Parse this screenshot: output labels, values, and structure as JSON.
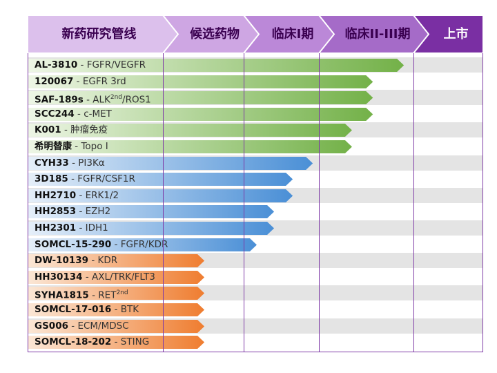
{
  "header": {
    "stages": [
      {
        "label": "新药研究管线",
        "fill": "#dcc0ec",
        "text_color": "#3a0050"
      },
      {
        "label": "候选药物",
        "fill": "#cea6e3",
        "text_color": "#3a0050"
      },
      {
        "label": "临床I期",
        "fill": "#bb88d8",
        "text_color": "#3a0050"
      },
      {
        "label": "临床II-III期",
        "fill": "#a56bc8",
        "text_color": "#3a0050"
      },
      {
        "label": "上市",
        "fill": "#7a2fa3",
        "text_color": "#ffffff"
      }
    ]
  },
  "colors": {
    "green": "#73b148",
    "blue": "#4a8fd6",
    "orange": "#ef7d30",
    "row_odd": "#e4e4e4",
    "row_even": "#ffffff",
    "grid": "#7e3aa6"
  },
  "rows": [
    {
      "code": "AL-3810",
      "target": "FGFR/VEGFR",
      "progress": 0.826,
      "color": "green"
    },
    {
      "code": "120067",
      "target": "EGFR 3rd",
      "progress": 0.758,
      "color": "green"
    },
    {
      "code": "SAF-189s",
      "target": "ALK",
      "sup": "2nd",
      "target_after": "/ROS1",
      "progress": 0.758,
      "color": "green"
    },
    {
      "code": "SCC244",
      "target": "c-MET",
      "progress": 0.758,
      "color": "green"
    },
    {
      "code": "K001",
      "target": "肿瘤免疫",
      "progress": 0.712,
      "color": "green"
    },
    {
      "code": "希明替康",
      "target": "Topo I",
      "progress": 0.712,
      "color": "green"
    },
    {
      "code": "CYH33",
      "target": "PI3Kα",
      "progress": 0.626,
      "color": "blue"
    },
    {
      "code": "3D185",
      "target": "FGFR/CSF1R",
      "progress": 0.582,
      "color": "blue"
    },
    {
      "code": "HH2710",
      "target": "ERK1/2",
      "progress": 0.582,
      "color": "blue"
    },
    {
      "code": "HH2853",
      "target": "EZH2",
      "progress": 0.541,
      "color": "blue"
    },
    {
      "code": "HH2301",
      "target": "IDH1",
      "progress": 0.541,
      "color": "blue"
    },
    {
      "code": "SOMCL-15-290",
      "target": "FGFR/KDR",
      "progress": 0.503,
      "color": "blue"
    },
    {
      "code": "DW-10139",
      "target": "KDR",
      "progress": 0.388,
      "color": "orange"
    },
    {
      "code": "HH30134",
      "target": "AXL/TRK/FLT3",
      "progress": 0.388,
      "color": "orange"
    },
    {
      "code": "SYHA1815",
      "target": "RET",
      "sup": "2nd",
      "target_after": "",
      "progress": 0.388,
      "color": "orange"
    },
    {
      "code": "SOMCL-17-016",
      "target": "BTK",
      "progress": 0.388,
      "color": "orange"
    },
    {
      "code": "GS006",
      "target": "ECM/MDSC",
      "progress": 0.388,
      "color": "orange"
    },
    {
      "code": "SOMCL-18-202",
      "target": "STING",
      "progress": 0.388,
      "color": "orange"
    }
  ]
}
